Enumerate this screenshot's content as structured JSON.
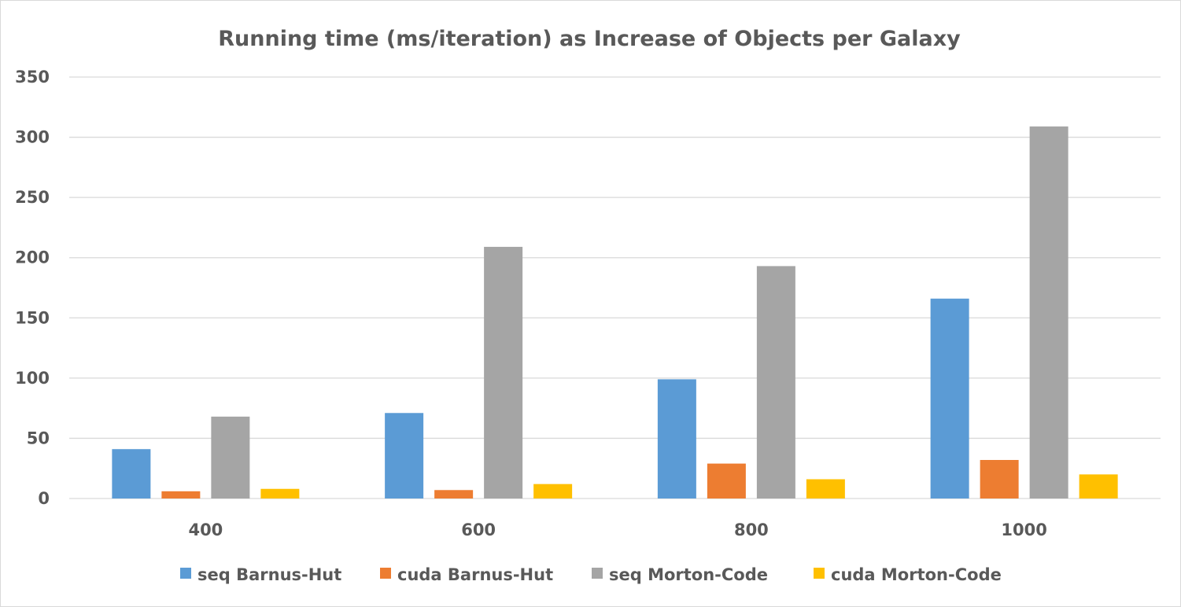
{
  "chart_data": {
    "type": "bar",
    "title": "Running time (ms/iteration) as Increase of  Objects per Galaxy",
    "xlabel": "",
    "ylabel": "",
    "categories": [
      "400",
      "600",
      "800",
      "1000"
    ],
    "ylim": [
      0,
      350
    ],
    "yticks": [
      0,
      50,
      100,
      150,
      200,
      250,
      300,
      350
    ],
    "grid": true,
    "legend_position": "bottom",
    "series": [
      {
        "name": "seq Barnus-Hut",
        "color": "#5b9bd5",
        "values": [
          41,
          71,
          99,
          166
        ]
      },
      {
        "name": "cuda Barnus-Hut",
        "color": "#ed7d31",
        "values": [
          6,
          7,
          29,
          32
        ]
      },
      {
        "name": "seq Morton-Code",
        "color": "#a5a5a5",
        "values": [
          68,
          209,
          193,
          309
        ]
      },
      {
        "name": "cuda Morton-Code",
        "color": "#ffc000",
        "values": [
          8,
          12,
          16,
          20
        ]
      }
    ]
  }
}
